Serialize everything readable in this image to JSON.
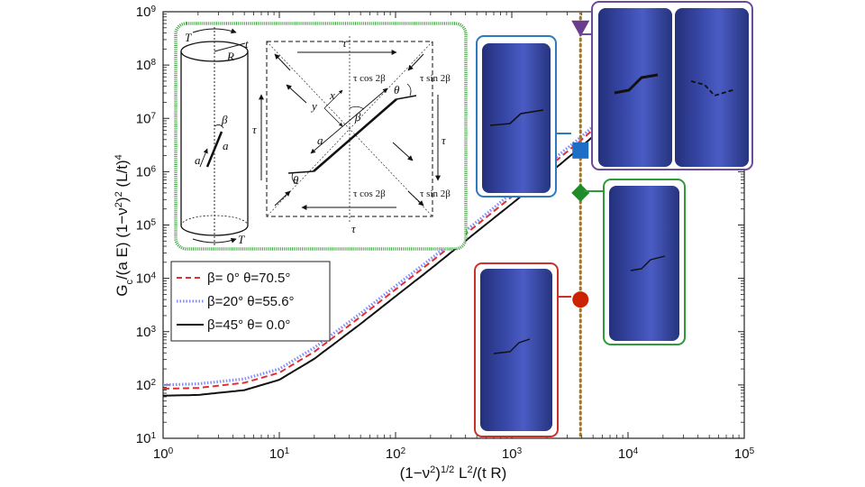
{
  "chart_data": {
    "type": "line",
    "x_scale": "log",
    "y_scale": "log",
    "xlim": [
      1,
      100000
    ],
    "ylim": [
      10,
      1000000000
    ],
    "xlabel": "(1−ν²)^{1/2} L²/(t R)",
    "ylabel": "G_c/(a E) (1−ν²)² (L/t)⁴",
    "x_ticks": [
      "10^0",
      "10^1",
      "10^2",
      "10^3",
      "10^4",
      "10^5"
    ],
    "y_ticks": [
      "10^1",
      "10^2",
      "10^3",
      "10^4",
      "10^5",
      "10^6",
      "10^7",
      "10^8",
      "10^9"
    ],
    "grid": false,
    "legend_position": "bottom-left",
    "series": [
      {
        "name": "β=  0°  θ=70.5°",
        "style": "dashed",
        "color": "#e03030",
        "x": [
          1,
          2,
          5,
          10,
          20,
          50,
          100,
          200,
          500,
          1000,
          2000,
          4000,
          10000
        ],
        "y": [
          85,
          88,
          110,
          170,
          420,
          1900,
          6200,
          20000,
          100000,
          340000,
          1150000,
          4000000,
          23000000
        ]
      },
      {
        "name": "β=20°  θ=55.6°",
        "style": "dotted",
        "color": "#7f8cff",
        "x": [
          1,
          2,
          5,
          10,
          20,
          50,
          100,
          200,
          500,
          1000,
          2000,
          4000,
          10000
        ],
        "y": [
          100,
          105,
          130,
          200,
          500,
          2200,
          7200,
          23000,
          115000,
          400000,
          1350000,
          4600000,
          27000000
        ]
      },
      {
        "name": "β=45°  θ=  0.0°",
        "style": "solid",
        "color": "#111111",
        "x": [
          1,
          2,
          5,
          10,
          20,
          50,
          100,
          200,
          500,
          1000,
          2000,
          4000,
          10000
        ],
        "y": [
          63,
          65,
          80,
          125,
          310,
          1400,
          4600,
          15000,
          75000,
          250000,
          850000,
          3000000,
          17000000
        ]
      }
    ],
    "vertical_line": {
      "x": 3900,
      "style": "dotted",
      "color": "#a0781e"
    },
    "markers": [
      {
        "x": 3900,
        "y": 4000,
        "shape": "circle",
        "color": "#cc2200"
      },
      {
        "x": 3900,
        "y": 400000,
        "shape": "diamond",
        "color": "#1e8c28"
      },
      {
        "x": 3900,
        "y": 2500000,
        "shape": "square",
        "color": "#1e6ec8"
      },
      {
        "x": 3900,
        "y": 500000000,
        "shape": "triangle-down",
        "color": "#6a3d8c"
      }
    ]
  },
  "legend_items": [
    "β=  0°  θ=70.5°",
    "β=20°  θ=55.6°",
    "β=45°  θ=  0.0°"
  ],
  "inset": {
    "cyl_T_top": "T",
    "cyl_t": "t",
    "cyl_R": "R",
    "cyl_beta": "β",
    "cyl_a": "a",
    "cyl_a2": "a",
    "cyl_T_bot": "T",
    "sq_tau_top": "τ",
    "sq_tau_bot": "τ",
    "sq_tau_left": "τ",
    "sq_tau_right": "τ",
    "sq_cos_top": "τ cos 2β",
    "sq_cos_bot": "τ cos 2β",
    "sq_sin_top": "τ sin 2β",
    "sq_sin_bot": "τ sin 2β",
    "sq_theta1": "θ",
    "sq_theta2": "θ",
    "sq_beta": "β",
    "sq_a": "a",
    "sq_x": "x",
    "sq_y": "y"
  },
  "colors": {
    "inset_border": "#3aa03c",
    "box_blue": "#2e7ac0",
    "box_green": "#2e9a3a",
    "box_red": "#c8322a",
    "box_purple": "#6e4a9a"
  }
}
